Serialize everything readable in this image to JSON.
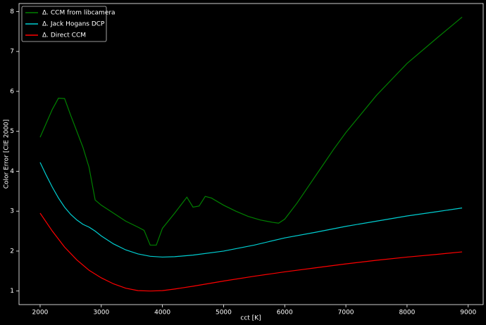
{
  "chart_data": {
    "type": "line",
    "x_label": "cct [K]",
    "y_label": "Color Error [CIE 2000]",
    "xlim": [
      1655,
      9245
    ],
    "ylim": [
      0.66,
      8.2
    ],
    "xticks": [
      2000,
      3000,
      4000,
      5000,
      6000,
      7000,
      8000,
      9000
    ],
    "yticks": [
      1,
      2,
      3,
      4,
      5,
      6,
      7,
      8
    ],
    "grid": false,
    "legend": "upper left",
    "series": [
      {
        "name": "Δ. CCM from libcamera",
        "color": "#008000",
        "x": [
          2000,
          2100,
          2200,
          2300,
          2400,
          2500,
          2600,
          2700,
          2800,
          2900,
          3000,
          3200,
          3400,
          3600,
          3700,
          3800,
          3900,
          4000,
          4200,
          4400,
          4500,
          4600,
          4700,
          4800,
          5000,
          5200,
          5400,
          5600,
          5800,
          5900,
          6000,
          6200,
          6400,
          6600,
          6800,
          7000,
          7500,
          8000,
          8500,
          8900
        ],
        "values": [
          4.85,
          5.2,
          5.55,
          5.83,
          5.82,
          5.4,
          5.0,
          4.6,
          4.1,
          3.28,
          3.15,
          2.95,
          2.75,
          2.6,
          2.52,
          2.15,
          2.15,
          2.57,
          2.95,
          3.35,
          3.1,
          3.13,
          3.37,
          3.33,
          3.15,
          3.0,
          2.87,
          2.78,
          2.72,
          2.7,
          2.8,
          3.2,
          3.65,
          4.1,
          4.55,
          4.97,
          5.9,
          6.7,
          7.35,
          7.86
        ]
      },
      {
        "name": "Δ. Jack Hogans DCP",
        "color": "#00ced1",
        "x": [
          2000,
          2100,
          2200,
          2300,
          2400,
          2500,
          2600,
          2700,
          2800,
          2900,
          3000,
          3200,
          3400,
          3600,
          3800,
          4000,
          4200,
          4500,
          5000,
          5500,
          6000,
          6500,
          7000,
          7500,
          8000,
          8500,
          8900
        ],
        "values": [
          4.22,
          3.9,
          3.6,
          3.33,
          3.1,
          2.92,
          2.78,
          2.67,
          2.6,
          2.5,
          2.38,
          2.18,
          2.03,
          1.93,
          1.87,
          1.85,
          1.86,
          1.9,
          2.0,
          2.15,
          2.33,
          2.47,
          2.62,
          2.75,
          2.88,
          2.99,
          3.08
        ]
      },
      {
        "name": "Δ. Direct CCM",
        "color": "#ff0000",
        "x": [
          2000,
          2200,
          2400,
          2600,
          2800,
          3000,
          3200,
          3400,
          3600,
          3800,
          4000,
          4200,
          4500,
          5000,
          5500,
          6000,
          6500,
          7000,
          7500,
          8000,
          8500,
          8900
        ],
        "values": [
          2.95,
          2.5,
          2.1,
          1.78,
          1.52,
          1.33,
          1.18,
          1.07,
          1.01,
          1.0,
          1.01,
          1.05,
          1.12,
          1.25,
          1.37,
          1.48,
          1.58,
          1.68,
          1.77,
          1.85,
          1.92,
          1.98
        ]
      }
    ]
  }
}
